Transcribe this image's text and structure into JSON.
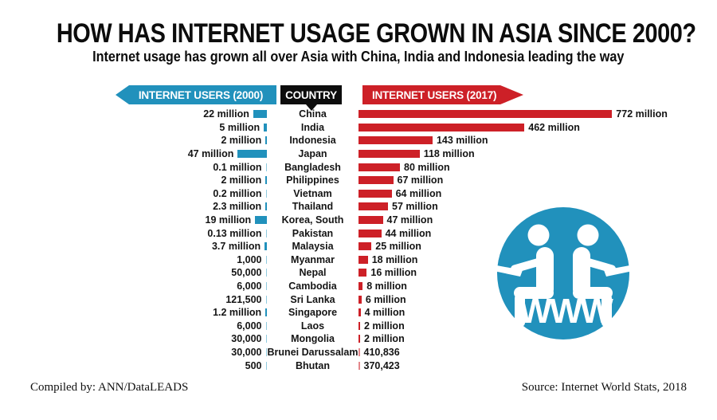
{
  "title": "HOW HAS INTERNET USAGE GROWN IN ASIA SINCE 2000?",
  "subtitle": "Internet usage has grown all over Asia with China, India and Indonesia leading the way",
  "headers": {
    "left": "INTERNET USERS (2000)",
    "middle": "COUNTRY",
    "right": "INTERNET USERS (2017)"
  },
  "footer": {
    "left": "Compiled by: ANN/DataLEADS",
    "right": "Source: Internet World Stats, 2018"
  },
  "icon": {
    "label": "WWW"
  },
  "colors": {
    "blue": "#2191bc",
    "blue_light": "#90cbdf",
    "red": "#cd2027",
    "red_light": "#e4878b",
    "banner_black": "#0d0d0d"
  },
  "chart_data": {
    "type": "bar",
    "layout": "bidirectional horizontal bars, country names in center column, 2000 values grow leftward (blue), 2017 values grow rightward (red), no axes or gridlines",
    "series": [
      {
        "name": "INTERNET USERS (2000)",
        "side": "left",
        "color": "#2191bc"
      },
      {
        "name": "INTERNET USERS (2017)",
        "side": "right",
        "color": "#cd2027"
      }
    ],
    "rows": [
      {
        "country": "China",
        "users_2000_label": "22 million",
        "users_2000_millions": 22,
        "users_2017_label": "772 million",
        "users_2017_millions": 772
      },
      {
        "country": "India",
        "users_2000_label": "5 million",
        "users_2000_millions": 5,
        "users_2017_label": "462 million",
        "users_2017_millions": 462
      },
      {
        "country": "Indonesia",
        "users_2000_label": "2 million",
        "users_2000_millions": 2,
        "users_2017_label": "143 million",
        "users_2017_millions": 143
      },
      {
        "country": "Japan",
        "users_2000_label": "47 million",
        "users_2000_millions": 47,
        "users_2017_label": "118 million",
        "users_2017_millions": 118
      },
      {
        "country": "Bangladesh",
        "users_2000_label": "0.1 million",
        "users_2000_millions": 0.1,
        "users_2017_label": "80 million",
        "users_2017_millions": 80
      },
      {
        "country": "Philippines",
        "users_2000_label": "2 million",
        "users_2000_millions": 2,
        "users_2017_label": "67 million",
        "users_2017_millions": 67
      },
      {
        "country": "Vietnam",
        "users_2000_label": "0.2 million",
        "users_2000_millions": 0.2,
        "users_2017_label": "64 million",
        "users_2017_millions": 64
      },
      {
        "country": "Thailand",
        "users_2000_label": "2.3 million",
        "users_2000_millions": 2.3,
        "users_2017_label": "57 million",
        "users_2017_millions": 57
      },
      {
        "country": "Korea, South",
        "users_2000_label": "19 million",
        "users_2000_millions": 19,
        "users_2017_label": "47 million",
        "users_2017_millions": 47
      },
      {
        "country": "Pakistan",
        "users_2000_label": "0.13 million",
        "users_2000_millions": 0.13,
        "users_2017_label": "44 million",
        "users_2017_millions": 44
      },
      {
        "country": "Malaysia",
        "users_2000_label": "3.7 million",
        "users_2000_millions": 3.7,
        "users_2017_label": "25 million",
        "users_2017_millions": 25
      },
      {
        "country": "Myanmar",
        "users_2000_label": "1,000",
        "users_2000_millions": 0.001,
        "users_2017_label": "18 million",
        "users_2017_millions": 18
      },
      {
        "country": "Nepal",
        "users_2000_label": "50,000",
        "users_2000_millions": 0.05,
        "users_2017_label": "16 million",
        "users_2017_millions": 16
      },
      {
        "country": "Cambodia",
        "users_2000_label": "6,000",
        "users_2000_millions": 0.006,
        "users_2017_label": "8 million",
        "users_2017_millions": 8
      },
      {
        "country": "Sri Lanka",
        "users_2000_label": "121,500",
        "users_2000_millions": 0.1215,
        "users_2017_label": "6 million",
        "users_2017_millions": 6
      },
      {
        "country": "Singapore",
        "users_2000_label": "1.2 million",
        "users_2000_millions": 1.2,
        "users_2017_label": "4 million",
        "users_2017_millions": 4
      },
      {
        "country": "Laos",
        "users_2000_label": "6,000",
        "users_2000_millions": 0.006,
        "users_2017_label": "2 million",
        "users_2017_millions": 2
      },
      {
        "country": "Mongolia",
        "users_2000_label": "30,000",
        "users_2000_millions": 0.03,
        "users_2017_label": "2 million",
        "users_2017_millions": 2
      },
      {
        "country": "Brunei Darussalam",
        "users_2000_label": "30,000",
        "users_2000_millions": 0.03,
        "users_2017_label": "410,836",
        "users_2017_millions": 0.410836
      },
      {
        "country": "Bhutan",
        "users_2000_label": "500",
        "users_2000_millions": 0.0005,
        "users_2017_label": "370,423",
        "users_2017_millions": 0.370423
      }
    ]
  }
}
